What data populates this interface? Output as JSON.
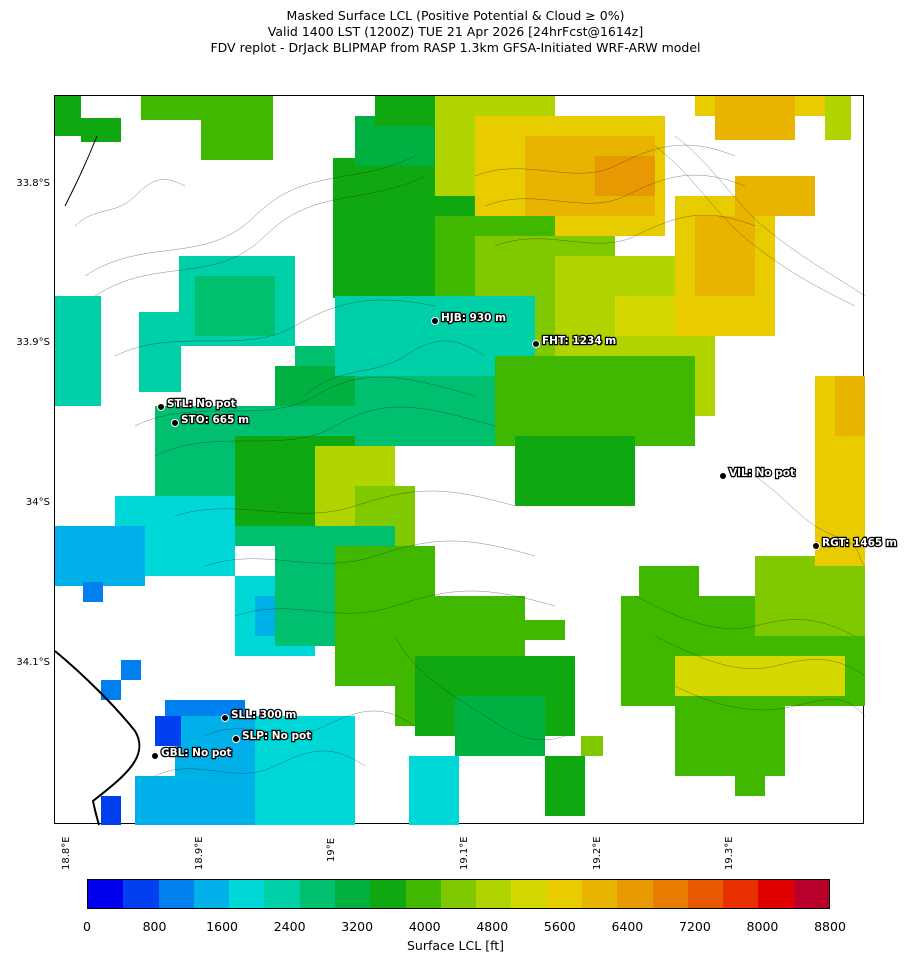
{
  "title": {
    "line1": "Masked Surface LCL (Positive Potential & Cloud ≥ 0%)",
    "line2": "Valid 1400 LST (1200Z) TUE 21 Apr 2026 [24hrFcst@1614z]",
    "line3": "FDV replot - DrJack BLIPMAP from RASP 1.3km GFSA-Initiated WRF-ARW model"
  },
  "axes": {
    "lat_labels": [
      "33.8°S",
      "33.9°S",
      "34°S",
      "34.1°S"
    ],
    "lon_labels": [
      "18.8°E",
      "18.9°E",
      "19°E",
      "19.1°E",
      "19.2°E",
      "19.3°E"
    ]
  },
  "stations": [
    {
      "id": "HJB",
      "label": "HJB: 930 m"
    },
    {
      "id": "FHT",
      "label": "FHT: 1234 m"
    },
    {
      "id": "STL",
      "label": "STL: No pot"
    },
    {
      "id": "STO",
      "label": "STO: 665 m"
    },
    {
      "id": "VIL",
      "label": "VIL: No pot"
    },
    {
      "id": "RGT",
      "label": "RGT: 1465 m"
    },
    {
      "id": "SLL",
      "label": "SLL: 300 m"
    },
    {
      "id": "SLP",
      "label": "SLP: No pot"
    },
    {
      "id": "GBL",
      "label": "GBL: No pot"
    }
  ],
  "colorbar": {
    "title": "Surface LCL [ft]",
    "tick_labels": [
      "0",
      "800",
      "1600",
      "2400",
      "3200",
      "4000",
      "4800",
      "5600",
      "6400",
      "7200",
      "8000",
      "8800"
    ],
    "colors": [
      "#0000ee",
      "#0040f0",
      "#0080ee",
      "#00b0e8",
      "#00d8d8",
      "#00d0a8",
      "#00c070",
      "#00b040",
      "#10a810",
      "#40b800",
      "#80c800",
      "#b0d400",
      "#d4d800",
      "#e8cc00",
      "#e8b400",
      "#e89800",
      "#e87c00",
      "#e85a00",
      "#e83000",
      "#e00000",
      "#b8002a"
    ]
  }
}
